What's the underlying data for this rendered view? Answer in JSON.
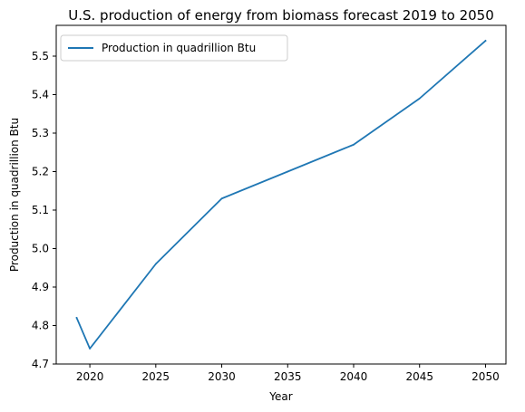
{
  "chart_data": {
    "type": "line",
    "title": "U.S. production of energy from biomass forecast 2019 to 2050",
    "xlabel": "Year",
    "ylabel": "Production in quadrillion Btu",
    "x": [
      2019,
      2020,
      2025,
      2030,
      2035,
      2040,
      2045,
      2050
    ],
    "series": [
      {
        "name": "Production in quadrillion Btu",
        "values": [
          4.82,
          4.74,
          4.96,
          5.13,
          5.2,
          5.27,
          5.39,
          5.54
        ],
        "color": "#1f77b4"
      }
    ],
    "xticks": [
      "2020",
      "2025",
      "2030",
      "2035",
      "2040",
      "2045",
      "2050"
    ],
    "yticks": [
      "4.7",
      "4.8",
      "4.9",
      "5.0",
      "5.1",
      "5.2",
      "5.3",
      "5.4",
      "5.5"
    ],
    "xlim": [
      2017.45,
      2051.55
    ],
    "ylim": [
      4.7,
      5.58
    ],
    "grid": false,
    "legend_position": "upper-left"
  }
}
